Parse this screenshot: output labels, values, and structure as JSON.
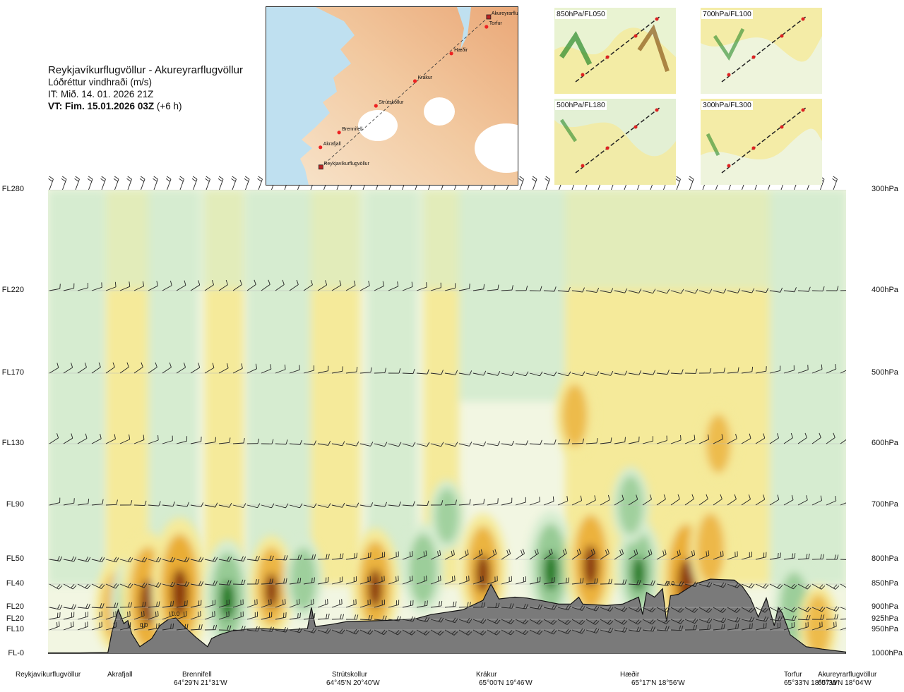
{
  "header": {
    "route": "Reykjavíkurflugvöllur - Akureyrarflugvöllur",
    "parameter": "Lóðréttur vindhraði (m/s)",
    "issue_time": "IT: Mið. 14. 01. 2026 21Z",
    "valid_time_bold": "VT: Fim. 15.01.2026 03Z",
    "valid_time_offset": "(+6 h)"
  },
  "map": {
    "places": [
      {
        "name": "Akureyrarflugvöllur",
        "lon": -18.07,
        "lat": 65.65,
        "airport": true
      },
      {
        "name": "Torfur",
        "lon": -18.12,
        "lat": 65.55,
        "airport": false
      },
      {
        "name": "Hæðir",
        "lon": -18.93,
        "lat": 65.28,
        "airport": false
      },
      {
        "name": "Krákur",
        "lon": -19.77,
        "lat": 65.0,
        "airport": false
      },
      {
        "name": "Strútskollur",
        "lon": -20.67,
        "lat": 64.75,
        "airport": false
      },
      {
        "name": "Brennifell",
        "lon": -21.52,
        "lat": 64.48,
        "airport": false
      },
      {
        "name": "Akrafjall",
        "lon": -21.95,
        "lat": 64.33,
        "airport": false
      },
      {
        "name": "Reykjavíkurflugvöllur",
        "lon": -21.94,
        "lat": 64.13,
        "airport": true
      }
    ]
  },
  "level_panels": [
    "850hPa/FL050",
    "700hPa/FL100",
    "500hPa/FL180",
    "300hPa/FL300"
  ],
  "chart_data": {
    "type": "heatmap",
    "title": "Lóðréttur vindhraði (m/s)",
    "levels": [
      {
        "fl": "FL280",
        "hpa": "300hPa",
        "p": 300
      },
      {
        "fl": "FL220",
        "hpa": "400hPa",
        "p": 400
      },
      {
        "fl": "FL170",
        "hpa": "500hPa",
        "p": 500
      },
      {
        "fl": "FL130",
        "hpa": "600hPa",
        "p": 600
      },
      {
        "fl": "FL90",
        "hpa": "700hPa",
        "p": 700
      },
      {
        "fl": "FL50",
        "hpa": "800hPa",
        "p": 800
      },
      {
        "fl": "FL40",
        "hpa": "850hPa",
        "p": 850
      },
      {
        "fl": "FL20",
        "hpa": "900hPa",
        "p": 900
      },
      {
        "fl": "FL20",
        "hpa": "925hPa",
        "p": 925
      },
      {
        "fl": "FL10",
        "hpa": "950hPa",
        "p": 950
      },
      {
        "fl": "FL-0",
        "hpa": "1000hPa",
        "p": 1000
      }
    ],
    "stations": [
      {
        "name": "Reykjavíkurflugvöllur",
        "coord": "",
        "dist": 0.0
      },
      {
        "name": "Akrafjall",
        "coord": "",
        "dist": 0.09
      },
      {
        "name": "Brennifell",
        "coord": "64°29'N 21°31'W",
        "dist": 0.18
      },
      {
        "name": "Strútskollur",
        "coord": "64°45'N 20°40'W",
        "dist": 0.37
      },
      {
        "name": "Krákur",
        "coord": "65°00'N 19°46'W",
        "dist": 0.57
      },
      {
        "name": "Hæðir",
        "coord": "65°17'N 18°56'W",
        "dist": 0.76
      },
      {
        "name": "Torfur",
        "coord": "65°33'N 18°07'W",
        "dist": 0.94
      },
      {
        "name": "Akureyrarflugvöllur",
        "coord": "65°39'N 18°04'W",
        "dist": 1.0
      }
    ],
    "cell_labels": [
      {
        "text": "0.0",
        "dist": 0.12,
        "p": 943
      },
      {
        "text": "0.0",
        "dist": 0.16,
        "p": 918
      },
      {
        "text": "0.0",
        "dist": 0.78,
        "p": 853
      }
    ],
    "terrain_profile": [
      [
        0.0,
        998
      ],
      [
        0.04,
        998
      ],
      [
        0.075,
        997
      ],
      [
        0.08,
        955
      ],
      [
        0.088,
        905
      ],
      [
        0.095,
        935
      ],
      [
        0.1,
        928
      ],
      [
        0.105,
        958
      ],
      [
        0.115,
        985
      ],
      [
        0.13,
        968
      ],
      [
        0.14,
        940
      ],
      [
        0.15,
        926
      ],
      [
        0.16,
        922
      ],
      [
        0.17,
        941
      ],
      [
        0.185,
        965
      ],
      [
        0.2,
        985
      ],
      [
        0.205,
        968
      ],
      [
        0.215,
        960
      ],
      [
        0.23,
        952
      ],
      [
        0.25,
        948
      ],
      [
        0.27,
        947
      ],
      [
        0.3,
        950
      ],
      [
        0.325,
        947
      ],
      [
        0.33,
        900
      ],
      [
        0.335,
        942
      ],
      [
        0.355,
        937
      ],
      [
        0.375,
        930
      ],
      [
        0.4,
        929
      ],
      [
        0.43,
        927
      ],
      [
        0.46,
        924
      ],
      [
        0.48,
        915
      ],
      [
        0.5,
        910
      ],
      [
        0.52,
        905
      ],
      [
        0.545,
        885
      ],
      [
        0.555,
        850
      ],
      [
        0.565,
        882
      ],
      [
        0.585,
        878
      ],
      [
        0.6,
        880
      ],
      [
        0.62,
        886
      ],
      [
        0.64,
        893
      ],
      [
        0.655,
        893
      ],
      [
        0.665,
        878
      ],
      [
        0.67,
        893
      ],
      [
        0.7,
        896
      ],
      [
        0.72,
        893
      ],
      [
        0.74,
        878
      ],
      [
        0.745,
        915
      ],
      [
        0.75,
        868
      ],
      [
        0.76,
        878
      ],
      [
        0.77,
        860
      ],
      [
        0.775,
        930
      ],
      [
        0.78,
        875
      ],
      [
        0.79,
        872
      ],
      [
        0.81,
        850
      ],
      [
        0.83,
        840
      ],
      [
        0.86,
        842
      ],
      [
        0.87,
        855
      ],
      [
        0.88,
        880
      ],
      [
        0.89,
        920
      ],
      [
        0.9,
        880
      ],
      [
        0.91,
        940
      ],
      [
        0.915,
        900
      ],
      [
        0.92,
        912
      ],
      [
        0.93,
        960
      ],
      [
        0.95,
        985
      ],
      [
        0.97,
        990
      ],
      [
        1.0,
        996
      ]
    ],
    "vertical_velocity_blobs": [
      {
        "dist": 0.085,
        "p": 900,
        "value": 0.4
      },
      {
        "dist": 0.105,
        "p": 890,
        "value": -0.4
      },
      {
        "dist": 0.125,
        "p": 880,
        "value": 0.8
      },
      {
        "dist": 0.17,
        "p": 880,
        "value": -0.5
      },
      {
        "dist": 0.165,
        "p": 860,
        "value": 0.9
      },
      {
        "dist": 0.225,
        "p": 875,
        "value": -0.6
      },
      {
        "dist": 0.28,
        "p": 855,
        "value": 0.5
      },
      {
        "dist": 0.32,
        "p": 840,
        "value": -0.3
      },
      {
        "dist": 0.41,
        "p": 850,
        "value": 0.6
      },
      {
        "dist": 0.47,
        "p": 820,
        "value": -0.4
      },
      {
        "dist": 0.545,
        "p": 820,
        "value": 0.6
      },
      {
        "dist": 0.63,
        "p": 815,
        "value": -0.6
      },
      {
        "dist": 0.68,
        "p": 805,
        "value": 0.7
      },
      {
        "dist": 0.74,
        "p": 820,
        "value": -0.5
      },
      {
        "dist": 0.8,
        "p": 840,
        "value": 0.9
      },
      {
        "dist": 0.83,
        "p": 780,
        "value": 0.4
      },
      {
        "dist": 0.935,
        "p": 900,
        "value": -0.4
      },
      {
        "dist": 0.965,
        "p": 940,
        "value": 0.3
      },
      {
        "dist": 0.66,
        "p": 560,
        "value": 0.3
      },
      {
        "dist": 0.84,
        "p": 600,
        "value": 0.25
      },
      {
        "dist": 0.5,
        "p": 720,
        "value": -0.2
      },
      {
        "dist": 0.73,
        "p": 700,
        "value": -0.25
      }
    ],
    "legend_colors": {
      "strong_up": "#8b3a0e",
      "up": "#e8a020",
      "weak_up": "#f5ea9a",
      "weak_down": "#d6ecd0",
      "down": "#7fbf7f",
      "strong_down": "#1a7a1a",
      "terrain": "#7a7a7a"
    }
  }
}
